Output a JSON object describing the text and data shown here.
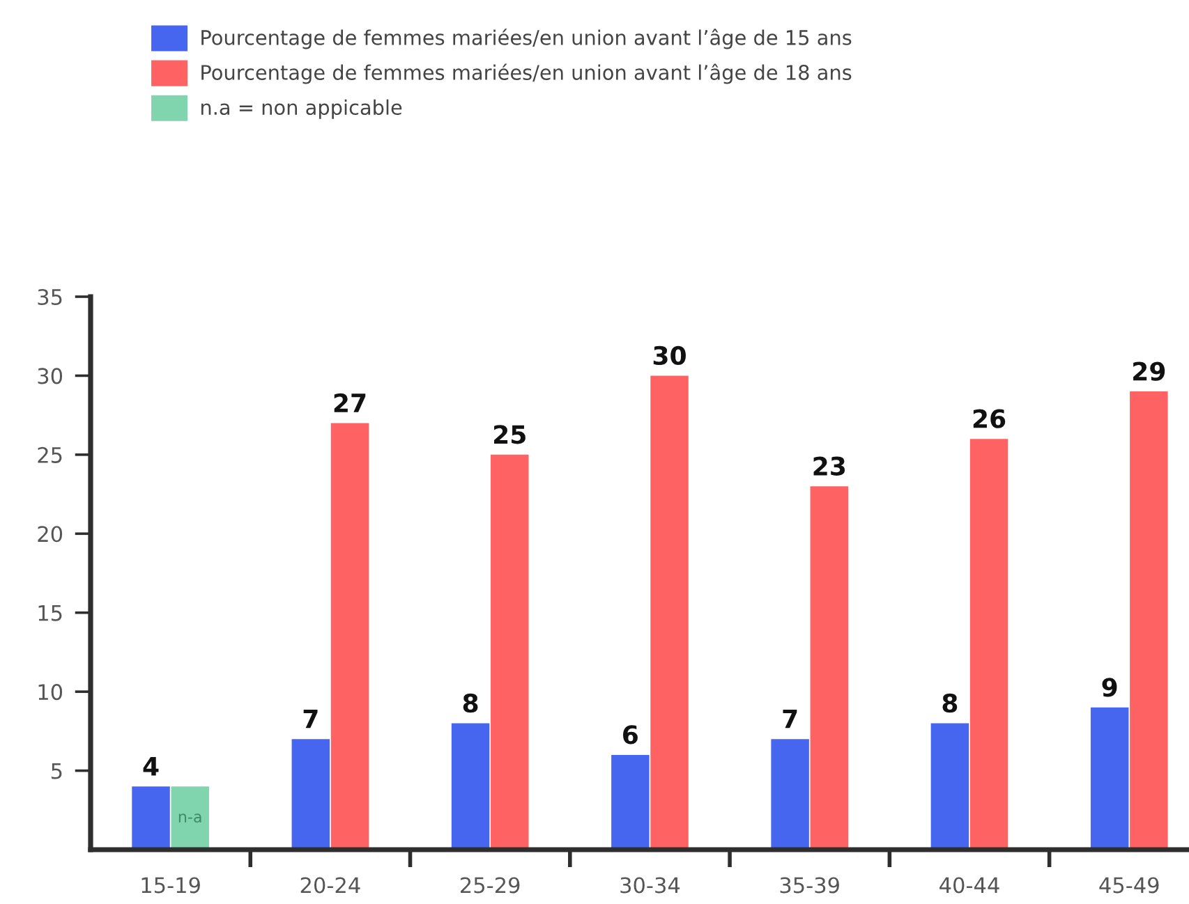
{
  "chart_data": {
    "type": "bar",
    "categories": [
      "15-19",
      "20-24",
      "25-29",
      "30-34",
      "35-39",
      "40-44",
      "45-49"
    ],
    "series": [
      {
        "name": "Pourcentage de femmes mariées/en union avant l’âge de 15 ans",
        "color": "#4666f0",
        "values": [
          4,
          7,
          8,
          6,
          7,
          8,
          9
        ]
      },
      {
        "name": "Pourcentage de femmes mariées/en union avant l’âge de 18 ans",
        "color": "#ff6262",
        "values": [
          null,
          27,
          25,
          30,
          23,
          26,
          29
        ]
      },
      {
        "name": "n.a = non appicable",
        "color": "#80d4ae",
        "values": [
          4,
          null,
          null,
          null,
          null,
          null,
          null
        ],
        "value_labels": [
          "n-a",
          null,
          null,
          null,
          null,
          null,
          null
        ]
      }
    ],
    "ylim": [
      0,
      35
    ],
    "yticks": [
      5,
      10,
      15,
      20,
      25,
      30,
      35
    ],
    "data_labels": true,
    "grid": false,
    "legend": "top left"
  }
}
